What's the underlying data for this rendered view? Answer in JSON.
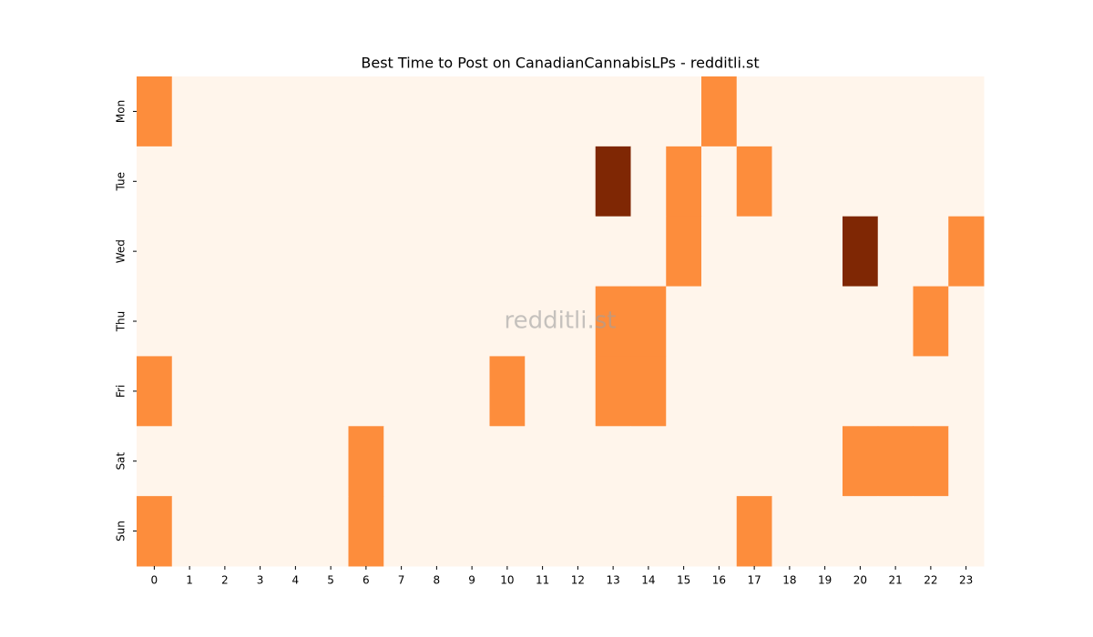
{
  "chart_data": {
    "type": "heatmap",
    "title": "Best Time to Post on CanadianCannabisLPs - redditli.st",
    "watermark": "redditli.st",
    "x": [
      0,
      1,
      2,
      3,
      4,
      5,
      6,
      7,
      8,
      9,
      10,
      11,
      12,
      13,
      14,
      15,
      16,
      17,
      18,
      19,
      20,
      21,
      22,
      23
    ],
    "y": [
      "Mon",
      "Tue",
      "Wed",
      "Thu",
      "Fri",
      "Sat",
      "Sun"
    ],
    "values": [
      [
        1,
        0,
        0,
        0,
        0,
        0,
        0,
        0,
        0,
        0,
        0,
        0,
        0,
        0,
        0,
        0,
        1,
        0,
        0,
        0,
        0,
        0,
        0,
        0
      ],
      [
        0,
        0,
        0,
        0,
        0,
        0,
        0,
        0,
        0,
        0,
        0,
        0,
        0,
        2,
        0,
        1,
        0,
        1,
        0,
        0,
        0,
        0,
        0,
        0
      ],
      [
        0,
        0,
        0,
        0,
        0,
        0,
        0,
        0,
        0,
        0,
        0,
        0,
        0,
        0,
        0,
        1,
        0,
        0,
        0,
        0,
        2,
        0,
        0,
        1
      ],
      [
        0,
        0,
        0,
        0,
        0,
        0,
        0,
        0,
        0,
        0,
        0,
        0,
        0,
        1,
        1,
        0,
        0,
        0,
        0,
        0,
        0,
        0,
        1,
        0
      ],
      [
        1,
        0,
        0,
        0,
        0,
        0,
        0,
        0,
        0,
        0,
        1,
        0,
        0,
        1,
        1,
        0,
        0,
        0,
        0,
        0,
        0,
        0,
        0,
        0
      ],
      [
        0,
        0,
        0,
        0,
        0,
        0,
        1,
        0,
        0,
        0,
        0,
        0,
        0,
        0,
        0,
        0,
        0,
        0,
        0,
        0,
        1,
        1,
        1,
        0
      ],
      [
        1,
        0,
        0,
        0,
        0,
        0,
        1,
        0,
        0,
        0,
        0,
        0,
        0,
        0,
        0,
        0,
        0,
        1,
        0,
        0,
        0,
        0,
        0,
        0
      ]
    ],
    "colorscale": [
      "#fff5eb",
      "#fd8d3c",
      "#7f2704"
    ],
    "zlim": [
      0,
      2
    ]
  }
}
